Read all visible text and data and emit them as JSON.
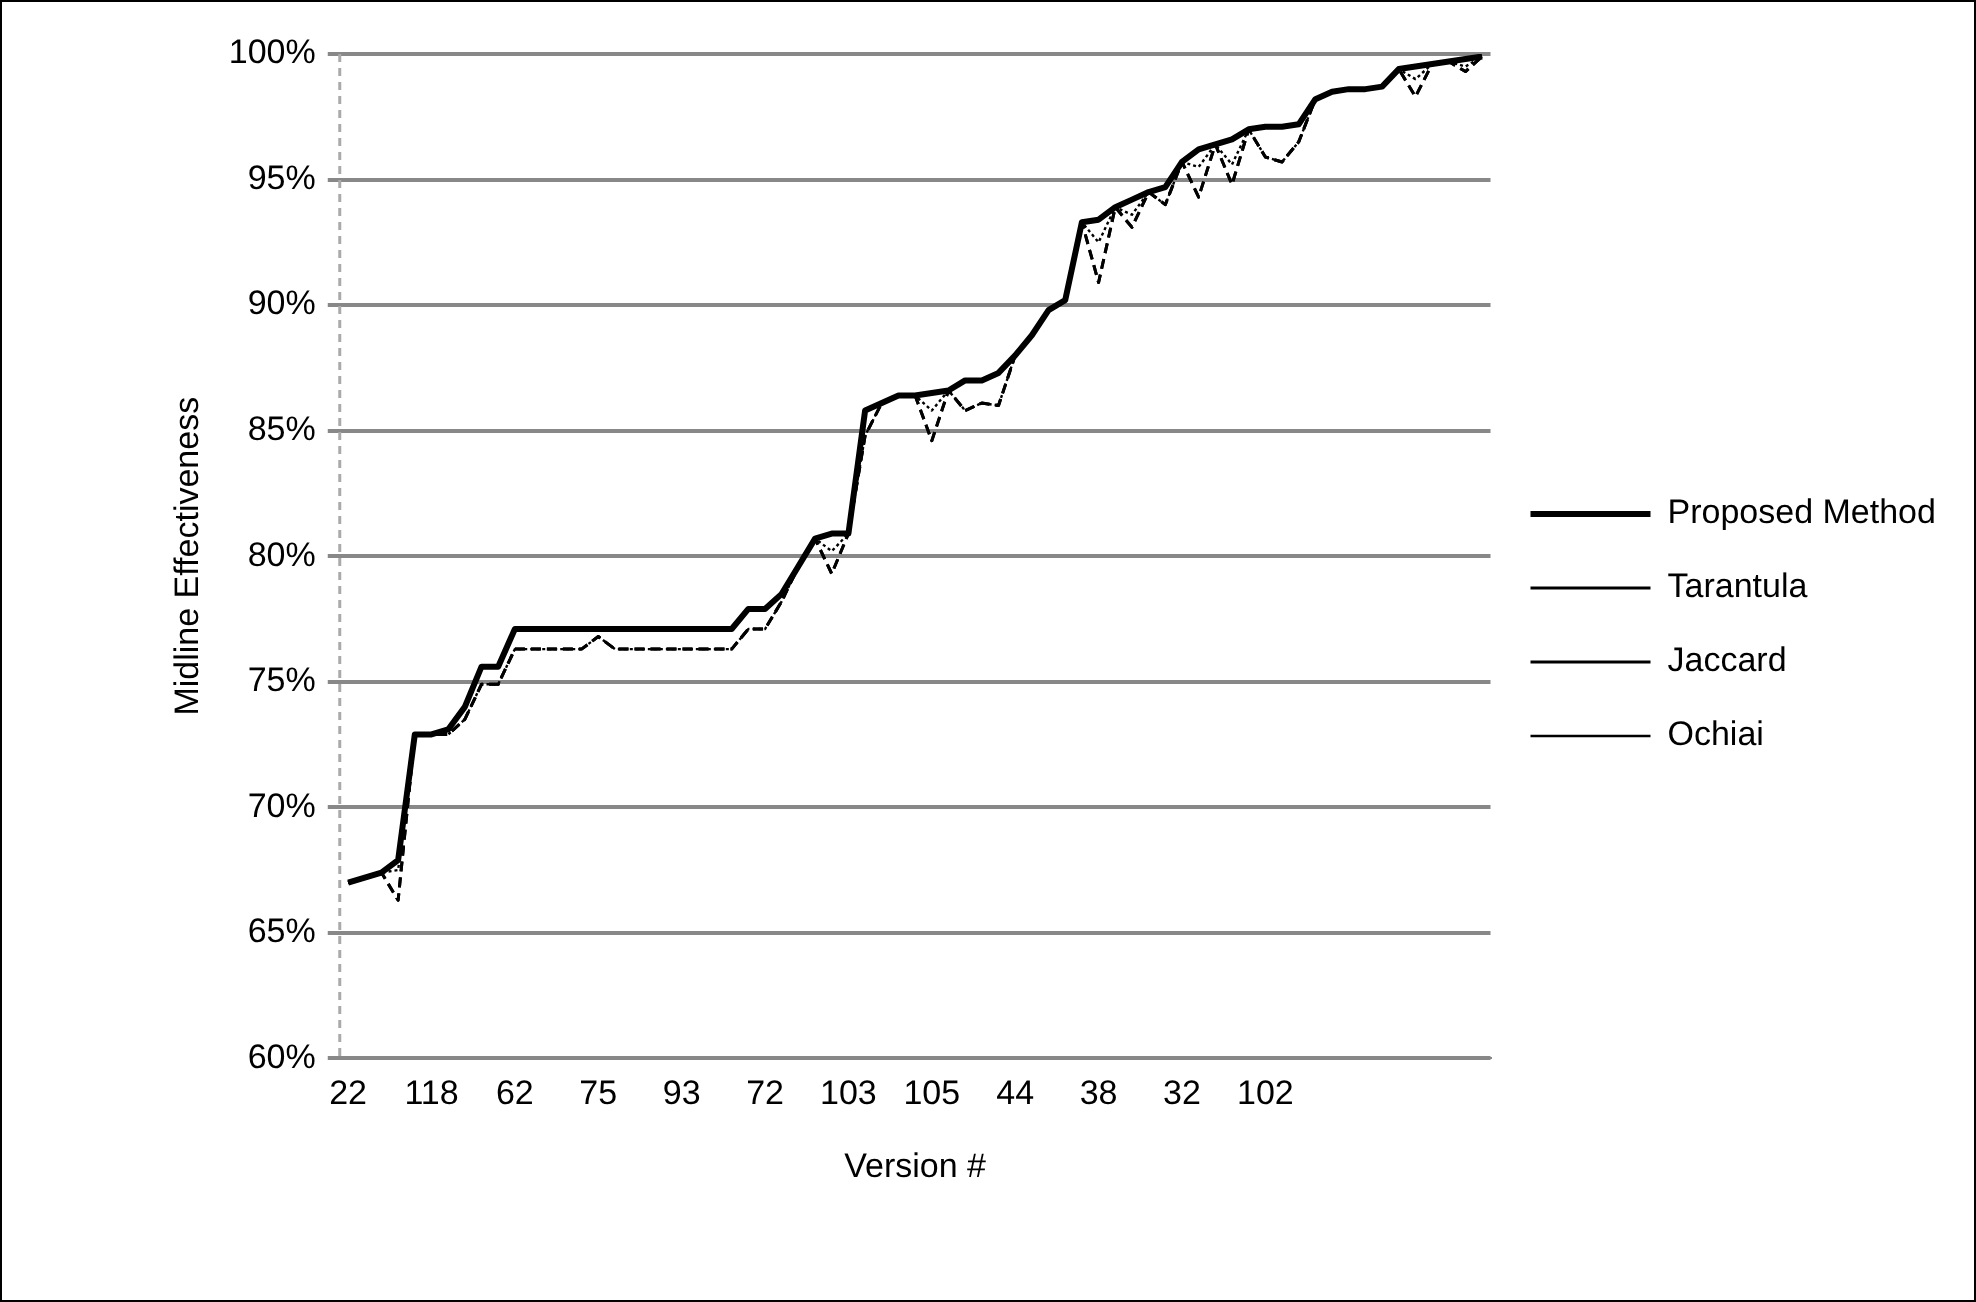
{
  "chart_data": {
    "type": "line",
    "xlabel": "Version #",
    "ylabel": "Midline Effectiveness",
    "categories": [
      "22",
      null,
      null,
      null,
      null,
      "118",
      null,
      null,
      null,
      null,
      "62",
      null,
      null,
      null,
      null,
      "75",
      null,
      null,
      null,
      null,
      "93",
      null,
      null,
      null,
      null,
      "72",
      null,
      null,
      null,
      null,
      "103",
      null,
      null,
      null,
      null,
      "105",
      null,
      null,
      null,
      null,
      "44",
      null,
      null,
      null,
      null,
      "38",
      null,
      null,
      null,
      null,
      "32",
      null,
      null,
      null,
      null,
      "102",
      null,
      null,
      null,
      null,
      null,
      null,
      null,
      null,
      null,
      null,
      null,
      null,
      null
    ],
    "series": [
      {
        "name": "Proposed Method",
        "color": "#000000",
        "line_style": "solid",
        "values": [
          67.0,
          67.2,
          67.4,
          67.9,
          72.9,
          72.9,
          73.1,
          74.0,
          75.6,
          75.6,
          77.1,
          77.1,
          77.1,
          77.1,
          77.1,
          77.1,
          77.1,
          77.1,
          77.1,
          77.1,
          77.1,
          77.1,
          77.1,
          77.1,
          77.9,
          77.9,
          78.5,
          79.6,
          80.7,
          80.9,
          80.9,
          85.8,
          86.1,
          86.4,
          86.4,
          86.5,
          86.6,
          87.0,
          87.0,
          87.3,
          88.0,
          88.8,
          89.8,
          90.2,
          93.3,
          93.4,
          93.9,
          94.2,
          94.5,
          94.7,
          95.7,
          96.2,
          96.4,
          96.6,
          97.0,
          97.1,
          97.1,
          97.2,
          98.2,
          98.5,
          98.6,
          98.6,
          98.7,
          99.4,
          99.5,
          99.6,
          99.7,
          99.8,
          99.9
        ]
      },
      {
        "name": "Tarantula",
        "color": "#000000",
        "line_style": "dashed",
        "values": [
          67.0,
          67.2,
          67.4,
          66.3,
          72.9,
          72.9,
          72.9,
          73.5,
          74.9,
          74.9,
          76.3,
          76.3,
          76.3,
          76.3,
          76.3,
          76.8,
          76.3,
          76.3,
          76.3,
          76.3,
          76.3,
          76.3,
          76.3,
          76.3,
          77.1,
          77.1,
          78.2,
          79.6,
          80.7,
          79.3,
          80.9,
          84.8,
          86.1,
          86.4,
          86.4,
          84.6,
          86.6,
          85.8,
          86.1,
          86.0,
          88.0,
          88.8,
          89.8,
          90.2,
          93.3,
          90.9,
          93.9,
          93.1,
          94.5,
          94.0,
          95.7,
          94.3,
          96.4,
          94.8,
          97.0,
          95.9,
          95.7,
          96.5,
          98.2,
          98.5,
          98.6,
          98.6,
          98.7,
          99.4,
          98.3,
          99.6,
          99.7,
          99.3,
          99.9
        ]
      },
      {
        "name": "Jaccard",
        "color": "#000000",
        "line_style": "dashed",
        "values": [
          67.0,
          67.2,
          67.4,
          66.3,
          72.9,
          72.9,
          72.9,
          73.5,
          74.9,
          74.9,
          76.3,
          76.3,
          76.3,
          76.3,
          76.3,
          76.8,
          76.3,
          76.3,
          76.3,
          76.3,
          76.3,
          76.3,
          76.3,
          76.3,
          77.1,
          77.1,
          78.2,
          79.6,
          80.7,
          79.3,
          80.9,
          84.8,
          86.1,
          86.4,
          86.4,
          84.6,
          86.6,
          85.8,
          86.1,
          86.0,
          88.0,
          88.8,
          89.8,
          90.2,
          93.3,
          90.9,
          93.9,
          93.1,
          94.5,
          94.0,
          95.7,
          94.3,
          96.4,
          94.8,
          97.0,
          95.9,
          95.7,
          96.5,
          98.2,
          98.5,
          98.6,
          98.6,
          98.7,
          99.4,
          98.3,
          99.6,
          99.7,
          99.3,
          99.9
        ]
      },
      {
        "name": "Ochiai",
        "color": "#000000",
        "line_style": "dotted",
        "values": [
          67.0,
          67.2,
          67.4,
          67.5,
          72.9,
          72.9,
          72.9,
          73.5,
          74.9,
          74.9,
          76.3,
          76.3,
          76.3,
          76.3,
          76.3,
          76.8,
          76.3,
          76.3,
          76.3,
          76.3,
          76.3,
          76.3,
          76.3,
          76.3,
          77.1,
          77.1,
          78.2,
          79.6,
          80.7,
          80.2,
          80.9,
          84.8,
          86.1,
          86.4,
          86.4,
          85.8,
          86.6,
          85.8,
          86.1,
          86.0,
          88.0,
          88.8,
          89.8,
          90.2,
          93.3,
          92.5,
          93.9,
          93.6,
          94.5,
          94.0,
          95.7,
          95.5,
          96.4,
          95.6,
          97.0,
          95.9,
          95.7,
          96.5,
          98.2,
          98.5,
          98.6,
          98.6,
          98.7,
          99.4,
          99.0,
          99.6,
          99.7,
          99.5,
          99.9
        ]
      }
    ],
    "ylim": [
      60,
      100
    ],
    "yticks": [
      {
        "value": 60,
        "label": "60%"
      },
      {
        "value": 65,
        "label": "65%"
      },
      {
        "value": 70,
        "label": "70%"
      },
      {
        "value": 75,
        "label": "75%"
      },
      {
        "value": 80,
        "label": "80%"
      },
      {
        "value": 85,
        "label": "85%"
      },
      {
        "value": 90,
        "label": "90%"
      },
      {
        "value": 95,
        "label": "95%"
      },
      {
        "value": 100,
        "label": "100%"
      }
    ],
    "grid": "y",
    "legend": "right",
    "marker": "none"
  }
}
